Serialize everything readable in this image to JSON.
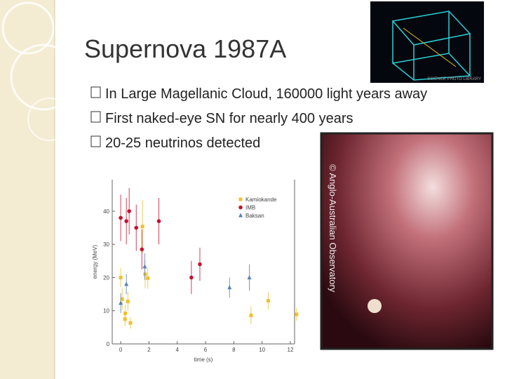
{
  "slide": {
    "title": "Supernova 1987A",
    "bullets": [
      "In Large Magellanic Cloud, 160000 light years away",
      "First naked-eye SN for nearly 400 years",
      "20-25 neutrinos detected"
    ],
    "photo_credit_top": "SCIENCE PHOTO LIBRARY",
    "photo_credit_right": "© Anglo-Australian Observatory"
  },
  "chart_data": {
    "type": "scatter",
    "xlabel": "time (s)",
    "ylabel": "energy (MeV)",
    "xlim": [
      -0.6,
      12.3
    ],
    "ylim": [
      0,
      49.5
    ],
    "xticks": [
      0,
      2,
      4,
      6,
      8,
      10,
      12
    ],
    "yticks": [
      0,
      10,
      20,
      30,
      40
    ],
    "grid": false,
    "series": [
      {
        "name": "Kamiokande",
        "color": "#f0c02c",
        "marker": "square",
        "x": [
          0,
          0.107,
          0.303,
          0.324,
          0.507,
          0.686,
          1.541,
          1.728,
          1.915,
          9.219,
          10.433,
          12.439
        ],
        "values": [
          20,
          13.5,
          7.5,
          9.2,
          12.8,
          6.3,
          35.4,
          21,
          19.8,
          8.6,
          13,
          8.9
        ],
        "errors": [
          2.9,
          3.2,
          2.0,
          2.7,
          2.9,
          1.7,
          8,
          4.2,
          3.2,
          2.7,
          2.6,
          1.9
        ]
      },
      {
        "name": "IMB",
        "color": "#c8102e",
        "marker": "circle",
        "x": [
          0,
          0.4,
          0.6,
          1.1,
          1.5,
          2.7,
          5.0,
          5.6
        ],
        "values": [
          38,
          37,
          40,
          35,
          28.5,
          37,
          20,
          24
        ],
        "errors": [
          7,
          7,
          7,
          7,
          6,
          7,
          5,
          5
        ]
      },
      {
        "name": "Baksan",
        "color": "#5a7fb8",
        "marker": "triangle",
        "x": [
          0,
          0.4,
          1.7,
          7.7,
          9.1
        ],
        "values": [
          12.3,
          18,
          23.3,
          17,
          20
        ],
        "errors": [
          3,
          3,
          4,
          3,
          4
        ]
      }
    ]
  }
}
